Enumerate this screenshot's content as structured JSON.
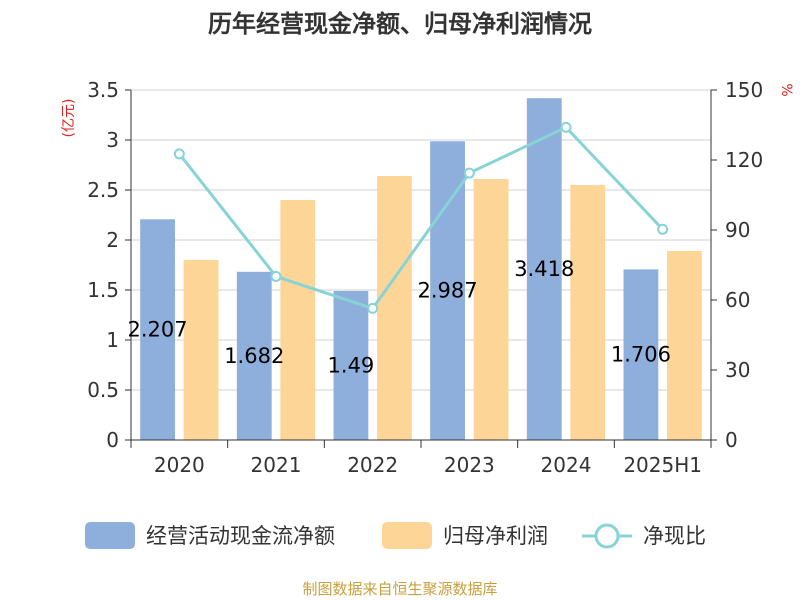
{
  "chart_data": {
    "type": "bar",
    "title": "历年经营现金净额、归母净利润情况",
    "categories": [
      "2020",
      "2021",
      "2022",
      "2023",
      "2024",
      "2025H1"
    ],
    "series": [
      {
        "name": "经营活动现金流净额",
        "type": "bar",
        "axis": "left",
        "color": "#8eaedc",
        "values": [
          2.207,
          1.682,
          1.49,
          2.987,
          3.418,
          1.706
        ],
        "labels": [
          "2.207",
          "1.682",
          "1.49",
          "2.987",
          "3.418",
          "1.706"
        ]
      },
      {
        "name": "归母净利润",
        "type": "bar",
        "axis": "left",
        "color": "#fdd697",
        "values": [
          1.8,
          2.4,
          2.64,
          2.61,
          2.55,
          1.89
        ]
      },
      {
        "name": "净现比",
        "type": "line",
        "axis": "right",
        "color": "#88d3d6",
        "values": [
          122.6,
          70.1,
          56.4,
          114.4,
          134.0,
          90.3
        ]
      }
    ],
    "y_left": {
      "unit": "(亿元)",
      "ylim": [
        0,
        3.5
      ],
      "ticks": [
        "0",
        "0.5",
        "1",
        "1.5",
        "2",
        "2.5",
        "3",
        "3.5"
      ],
      "tick_values": [
        0,
        0.5,
        1,
        1.5,
        2,
        2.5,
        3,
        3.5
      ]
    },
    "y_right": {
      "unit": "%",
      "ylim": [
        0,
        150
      ],
      "ticks": [
        "0",
        "30",
        "60",
        "90",
        "120",
        "150"
      ],
      "tick_values": [
        0,
        30,
        60,
        90,
        120,
        150
      ]
    },
    "grid": true,
    "legend_position": "bottom"
  },
  "footer": {
    "source": "制图数据来自恒生聚源数据库"
  }
}
